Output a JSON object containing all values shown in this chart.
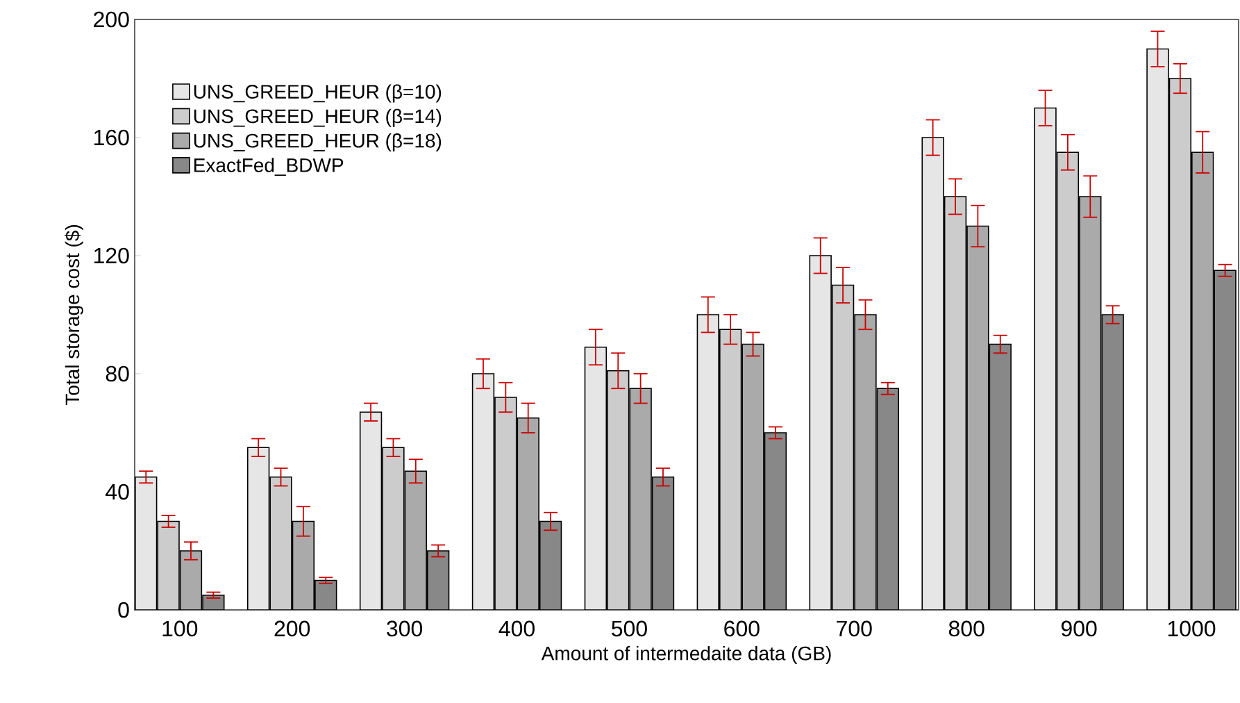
{
  "chart_data": {
    "type": "bar",
    "xlabel": "Amount of intermedaite data (GB)",
    "ylabel": "Total storage cost ($)",
    "categories": [
      "100",
      "200",
      "300",
      "400",
      "500",
      "600",
      "700",
      "800",
      "900",
      "1000"
    ],
    "series": [
      {
        "name": "UNS_GREED_HEUR (β=10)",
        "color": "#e6e6e6",
        "values": [
          45,
          55,
          67,
          80,
          89,
          100,
          120,
          160,
          170,
          190
        ],
        "errors": [
          2,
          3,
          3,
          5,
          6,
          6,
          6,
          6,
          6,
          6
        ]
      },
      {
        "name": "UNS_GREED_HEUR (β=14)",
        "color": "#cccccc",
        "values": [
          30,
          45,
          55,
          72,
          81,
          95,
          110,
          140,
          155,
          180
        ],
        "errors": [
          2,
          3,
          3,
          5,
          6,
          5,
          6,
          6,
          6,
          5
        ]
      },
      {
        "name": "UNS_GREED_HEUR (β=18)",
        "color": "#aaaaaa",
        "values": [
          20,
          30,
          47,
          65,
          75,
          90,
          100,
          130,
          140,
          155
        ],
        "errors": [
          3,
          5,
          4,
          5,
          5,
          4,
          5,
          7,
          7,
          7
        ]
      },
      {
        "name": "ExactFed_BDWP",
        "color": "#888888",
        "values": [
          5,
          10,
          20,
          30,
          45,
          60,
          75,
          90,
          100,
          115
        ],
        "errors": [
          1,
          1,
          2,
          3,
          3,
          2,
          2,
          3,
          3,
          2
        ]
      }
    ],
    "ylim": [
      0,
      200
    ],
    "yticks": [
      0,
      40,
      80,
      120,
      160,
      200
    ],
    "grid": false,
    "legend": "top left"
  }
}
